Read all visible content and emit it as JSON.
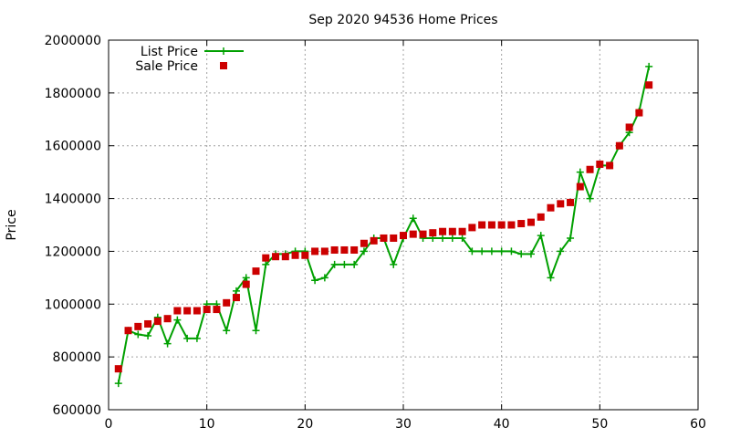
{
  "chart_data": {
    "type": "line",
    "title": "Sep 2020 94536 Home Prices",
    "xlabel": "",
    "ylabel": "Price",
    "xlim": [
      0,
      60
    ],
    "ylim": [
      600000,
      2000000
    ],
    "xticks": [
      0,
      10,
      20,
      30,
      40,
      50,
      60
    ],
    "yticks": [
      600000,
      800000,
      1000000,
      1200000,
      1400000,
      1600000,
      1800000,
      2000000
    ],
    "grid": true,
    "legend_position": "top-left",
    "series": [
      {
        "name": "List Price",
        "style": "line-plus",
        "color": "#00a000",
        "x": [
          1,
          2,
          3,
          4,
          5,
          6,
          7,
          8,
          9,
          10,
          11,
          12,
          13,
          14,
          15,
          16,
          17,
          18,
          19,
          20,
          21,
          22,
          23,
          24,
          25,
          26,
          27,
          28,
          29,
          30,
          31,
          32,
          33,
          34,
          35,
          36,
          37,
          38,
          39,
          40,
          41,
          42,
          43,
          44,
          45,
          46,
          47,
          48,
          49,
          50,
          51,
          52,
          53,
          54,
          55
        ],
        "values": [
          700000,
          900000,
          885000,
          880000,
          950000,
          850000,
          940000,
          870000,
          870000,
          1000000,
          1000000,
          900000,
          1050000,
          1100000,
          900000,
          1150000,
          1190000,
          1190000,
          1200000,
          1200000,
          1090000,
          1100000,
          1150000,
          1150000,
          1150000,
          1200000,
          1250000,
          1250000,
          1150000,
          1250000,
          1325000,
          1250000,
          1250000,
          1250000,
          1250000,
          1250000,
          1200000,
          1200000,
          1200000,
          1200000,
          1200000,
          1190000,
          1190000,
          1260000,
          1100000,
          1200000,
          1250000,
          1500000,
          1400000,
          1525000,
          1525000,
          1600000,
          1650000,
          1730000,
          1900000
        ]
      },
      {
        "name": "Sale Price",
        "style": "square",
        "color": "#cc0000",
        "x": [
          1,
          2,
          3,
          4,
          5,
          6,
          7,
          8,
          9,
          10,
          11,
          12,
          13,
          14,
          15,
          16,
          17,
          18,
          19,
          20,
          21,
          22,
          23,
          24,
          25,
          26,
          27,
          28,
          29,
          30,
          31,
          32,
          33,
          34,
          35,
          36,
          37,
          38,
          39,
          40,
          41,
          42,
          43,
          44,
          45,
          46,
          47,
          48,
          49,
          50,
          51,
          52,
          53,
          54,
          55
        ],
        "values": [
          755000,
          900000,
          915000,
          925000,
          935000,
          945000,
          975000,
          975000,
          975000,
          980000,
          980000,
          1005000,
          1025000,
          1075000,
          1125000,
          1175000,
          1180000,
          1180000,
          1185000,
          1185000,
          1200000,
          1200000,
          1205000,
          1205000,
          1205000,
          1230000,
          1240000,
          1250000,
          1250000,
          1260000,
          1265000,
          1265000,
          1270000,
          1275000,
          1275000,
          1275000,
          1290000,
          1300000,
          1300000,
          1300000,
          1300000,
          1305000,
          1310000,
          1330000,
          1365000,
          1380000,
          1385000,
          1445000,
          1510000,
          1530000,
          1525000,
          1600000,
          1670000,
          1725000,
          1830000
        ]
      }
    ]
  }
}
